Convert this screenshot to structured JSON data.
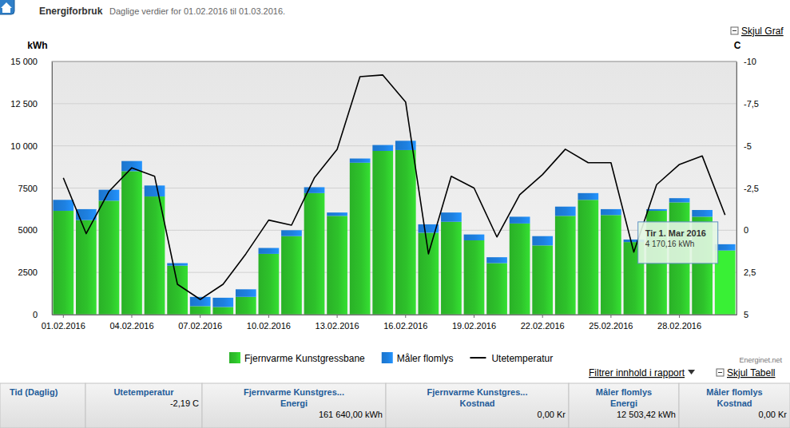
{
  "chart_data": {
    "type": "bar",
    "title": "Energiforbruk",
    "subtitle": "Daglige verdier for 01.02.2016 til 01.03.2016.",
    "y_label": "kWh",
    "y2_label": "C",
    "stacked": true,
    "grid": true,
    "legend": "bottom",
    "categories": [
      "01.02.2016",
      null,
      null,
      "04.02.2016",
      null,
      null,
      "07.02.2016",
      null,
      null,
      "10.02.2016",
      null,
      null,
      "13.02.2016",
      null,
      null,
      "16.02.2016",
      null,
      null,
      "19.02.2016",
      null,
      null,
      "22.02.2016",
      null,
      null,
      "25.02.2016",
      null,
      null,
      "28.02.2016",
      null,
      null
    ],
    "series": [
      {
        "name": "Fjernvarme Kunstgressbane",
        "color": "#2ec22b",
        "values": [
          6150,
          5600,
          6750,
          8500,
          7000,
          2900,
          500,
          450,
          1050,
          3600,
          4650,
          7200,
          5850,
          9000,
          9700,
          9750,
          4850,
          5500,
          4400,
          3050,
          5400,
          4100,
          5850,
          6800,
          5900,
          4300,
          6150,
          6650,
          5800,
          3800
        ]
      },
      {
        "name": "Måler flomlys",
        "color": "#1e80e0",
        "values": [
          650,
          650,
          650,
          600,
          650,
          150,
          550,
          550,
          450,
          350,
          350,
          350,
          200,
          250,
          350,
          550,
          500,
          550,
          350,
          350,
          400,
          550,
          550,
          400,
          350,
          150,
          100,
          250,
          400,
          370.16
        ]
      },
      {
        "name": "Utetemperatur",
        "type": "line",
        "axis": "y2",
        "color": "#000000",
        "values": [
          -3.1,
          0.2,
          -2.3,
          -3.7,
          -3.2,
          3.2,
          4.1,
          3.2,
          1.4,
          -0.6,
          -0.3,
          -3.1,
          -4.8,
          -9.1,
          -9.2,
          -7.6,
          1.4,
          -3.2,
          -2.5,
          0.4,
          -2.1,
          -3.3,
          -4.8,
          -4.0,
          -4.0,
          1.3,
          -2.7,
          -3.9,
          -4.4,
          -0.9
        ]
      }
    ],
    "ylim": [
      0,
      15000
    ],
    "yticks": [
      0,
      2500,
      5000,
      7500,
      {
        "value": 10000,
        "label": "10 000"
      },
      {
        "value": 12500,
        "label": "12 500"
      },
      {
        "value": 15000,
        "label": "15 000"
      }
    ],
    "y2lim": [
      5,
      -10
    ],
    "y2ticks": [
      5,
      {
        "value": 2.5,
        "label": "2,5"
      },
      0,
      {
        "value": -2.5,
        "label": "-2,5"
      },
      -5,
      {
        "value": -7.5,
        "label": "-7,5"
      },
      -10
    ],
    "annotations": [
      {
        "label": "Tir 1. Mar 2016",
        "text": "4 170,16 kWh",
        "value": 4170.16
      }
    ]
  },
  "footer": {
    "credit": "Energinet.net"
  },
  "controls": {
    "hide_chart": "Skjul Graf",
    "filter": "Filtrer innhold i rapport",
    "hide_table": "Skjul Tabell"
  },
  "table": {
    "columns": [
      {
        "title": "Tid (Daglig)"
      },
      {
        "title": "Utetemperatur",
        "total": "-2,19 C"
      },
      {
        "title": "Fjernvarme Kunstgres...",
        "measure": "Energi",
        "total": "161 640,00 kWh"
      },
      {
        "title": "Fjernvarme Kunstgres...",
        "measure": "Kostnad",
        "total": "0,00 Kr"
      },
      {
        "title": "Måler flomlys",
        "measure": "Energi",
        "total": "12 503,42 kWh"
      },
      {
        "title": "Måler flomlys",
        "measure": "Kostnad",
        "total": "0,00 Kr"
      }
    ]
  }
}
